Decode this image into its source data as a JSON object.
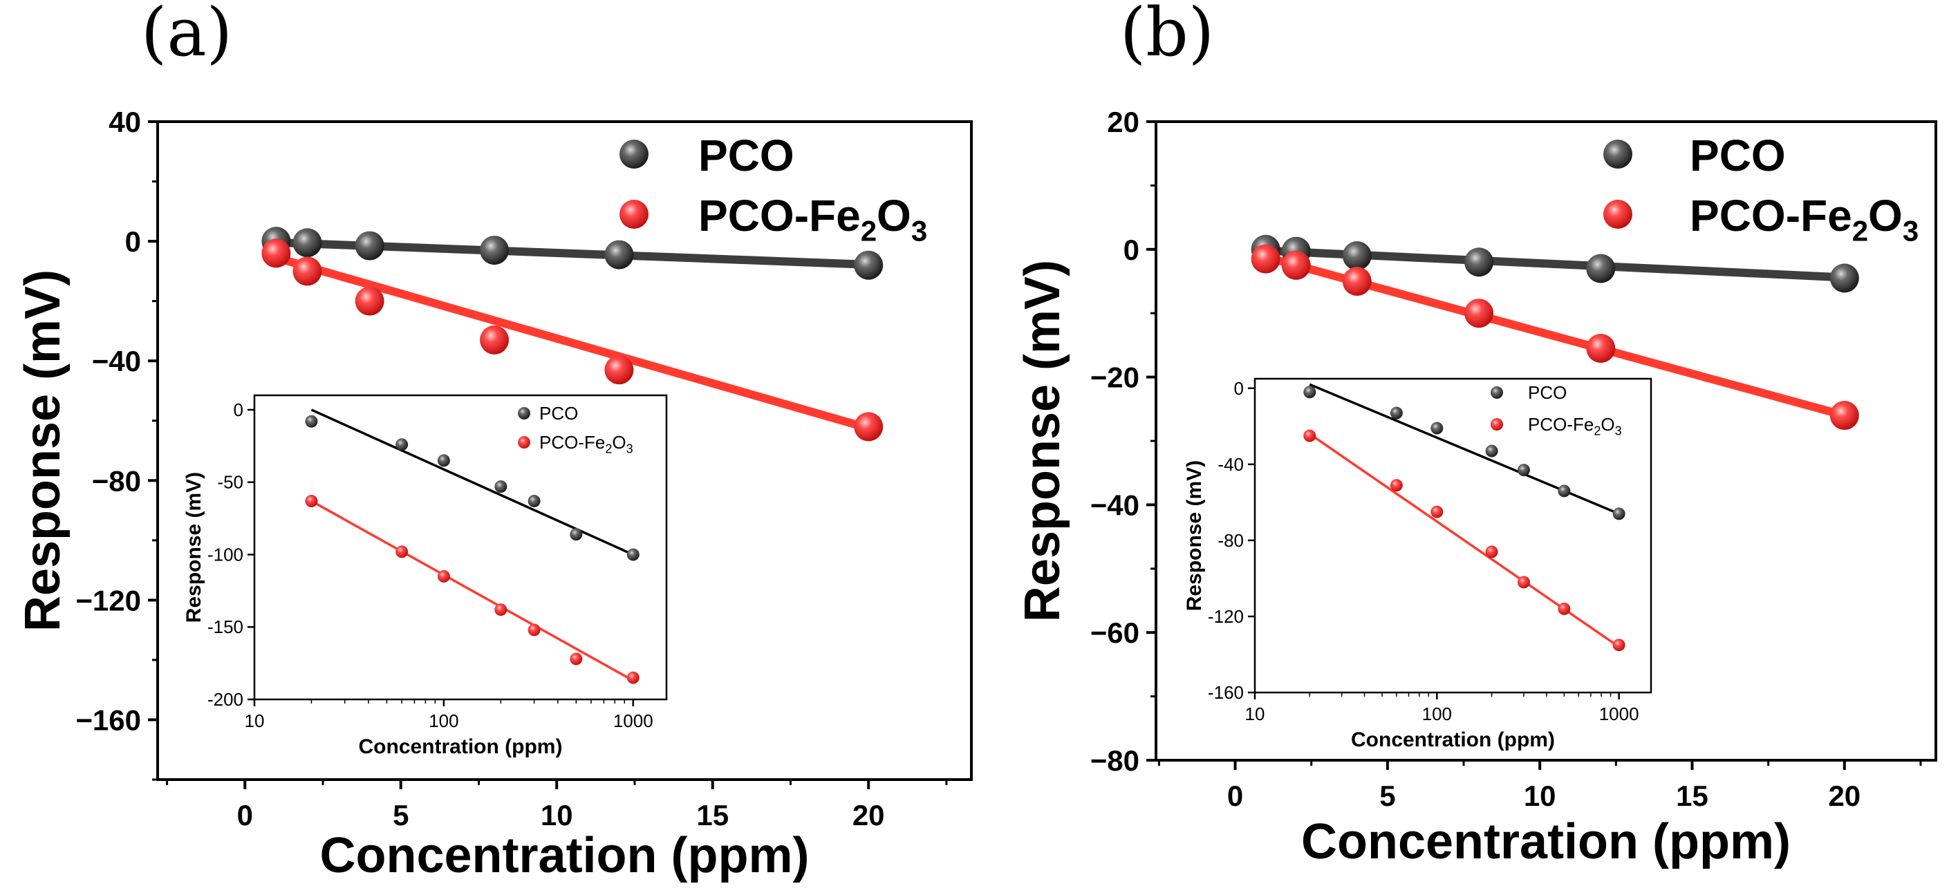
{
  "colors": {
    "pco": "#3a3a3a",
    "pco_fe2o3": "#ef2b2b",
    "pco_line": "#3d3d3d",
    "pco_fe2o3_line": "#ff3b30",
    "axis": "#000000"
  },
  "chart_data": [
    {
      "id": "a",
      "type": "scatter",
      "panel_label": "(a)",
      "xlabel": "Concentration (ppm)",
      "ylabel": "Response (mV)",
      "xlim": [
        -2.8,
        23.3
      ],
      "ylim": [
        -180,
        40
      ],
      "xticks": [
        0,
        5,
        10,
        15,
        20
      ],
      "xtick_labels": [
        "0",
        "5",
        "10",
        "15",
        "20"
      ],
      "yticks": [
        40,
        0,
        -40,
        -80,
        -120,
        -160
      ],
      "ytick_labels": [
        "40",
        "0",
        "−40",
        "−80",
        "−120",
        "−160"
      ],
      "legend_position": "top-right",
      "series": [
        {
          "name": "PCO",
          "legend_main": "PCO",
          "legend_sub": "",
          "legend_tail": "",
          "color_key": "pco",
          "x": [
            1,
            2,
            4,
            8,
            12,
            20
          ],
          "y": [
            0,
            -0.5,
            -1.5,
            -3,
            -4.5,
            -8
          ],
          "fit": [
            [
              1,
              -0.4
            ],
            [
              20,
              -7.8
            ]
          ]
        },
        {
          "name": "PCO-Fe2O3",
          "legend_main": "PCO-Fe",
          "legend_sub": "2",
          "legend_tail": "O",
          "legend_sub2": "3",
          "color_key": "pco_fe2o3",
          "x": [
            1,
            2,
            4,
            8,
            12,
            20
          ],
          "y": [
            -4,
            -10,
            -20,
            -33,
            -43,
            -62
          ],
          "fit": [
            [
              1,
              -5.5
            ],
            [
              20,
              -62.5
            ]
          ]
        }
      ],
      "inset": {
        "type": "scatter",
        "xscale": "log",
        "xlabel": "Concentration (ppm)",
        "ylabel": "Response (mV)",
        "xlim": [
          10,
          1500
        ],
        "ylim": [
          -200,
          10
        ],
        "xticks": [
          10,
          100,
          1000
        ],
        "xtick_labels": [
          "10",
          "100",
          "1000"
        ],
        "yticks": [
          0,
          -50,
          -100,
          -150,
          -200
        ],
        "ytick_labels": [
          "0",
          "-50",
          "-100",
          "-150",
          "-200"
        ],
        "series": [
          {
            "name": "PCO",
            "legend_main": "PCO",
            "legend_sub": "",
            "color_key": "pco",
            "x": [
              20,
              60,
              100,
              200,
              300,
              500,
              1000
            ],
            "y": [
              -8,
              -24,
              -35,
              -53,
              -63,
              -86,
              -100
            ],
            "fit": [
              [
                20,
                0
              ],
              [
                1000,
                -100
              ]
            ]
          },
          {
            "name": "PCO-Fe2O3",
            "legend_main": "PCO-Fe",
            "legend_sub": "2",
            "legend_tail": "O",
            "legend_sub2": "3",
            "color_key": "pco_fe2o3",
            "x": [
              20,
              60,
              100,
              200,
              300,
              500,
              1000
            ],
            "y": [
              -63,
              -98,
              -115,
              -138,
              -152,
              -172,
              -185
            ],
            "fit": [
              [
                20,
                -63
              ],
              [
                1000,
                -187
              ]
            ]
          }
        ]
      }
    },
    {
      "id": "b",
      "type": "scatter",
      "panel_label": "(b)",
      "xlabel": "Concentration (ppm)",
      "ylabel": "Response (mV)",
      "xlim": [
        -2.6,
        23.0
      ],
      "ylim": [
        -80,
        20
      ],
      "xticks": [
        0,
        5,
        10,
        15,
        20
      ],
      "xtick_labels": [
        "0",
        "5",
        "10",
        "15",
        "20"
      ],
      "yticks": [
        20,
        0,
        -20,
        -40,
        -60,
        -80
      ],
      "ytick_labels": [
        "20",
        "0",
        "−20",
        "−40",
        "−60",
        "−80"
      ],
      "legend_position": "top-right",
      "series": [
        {
          "name": "PCO",
          "legend_main": "PCO",
          "legend_sub": "",
          "color_key": "pco",
          "x": [
            1,
            2,
            4,
            8,
            12,
            20
          ],
          "y": [
            0,
            -0.3,
            -1,
            -2,
            -3,
            -4.5
          ],
          "fit": [
            [
              1,
              -0.2
            ],
            [
              20,
              -4.4
            ]
          ]
        },
        {
          "name": "PCO-Fe2O3",
          "legend_main": "PCO-Fe",
          "legend_sub": "2",
          "legend_tail": "O",
          "legend_sub2": "3",
          "color_key": "pco_fe2o3",
          "x": [
            1,
            2,
            4,
            8,
            12,
            20
          ],
          "y": [
            -1.5,
            -2.5,
            -5,
            -10,
            -15.5,
            -26
          ],
          "fit": [
            [
              1,
              -1.2
            ],
            [
              20,
              -26
            ]
          ]
        }
      ],
      "inset": {
        "type": "scatter",
        "xscale": "log",
        "xlabel": "Concentration (ppm)",
        "ylabel": "Response (mV)",
        "xlim": [
          10,
          1500
        ],
        "ylim": [
          -160,
          5
        ],
        "xticks": [
          10,
          100,
          1000
        ],
        "xtick_labels": [
          "10",
          "100",
          "1000"
        ],
        "yticks": [
          0,
          -40,
          -80,
          -120,
          -160
        ],
        "ytick_labels": [
          "0",
          "-40",
          "-80",
          "-120",
          "-160"
        ],
        "series": [
          {
            "name": "PCO",
            "legend_main": "PCO",
            "legend_sub": "",
            "color_key": "pco",
            "x": [
              20,
              60,
              100,
              200,
              300,
              500,
              1000
            ],
            "y": [
              -2,
              -13,
              -21,
              -33,
              -43,
              -54,
              -66
            ],
            "fit": [
              [
                20,
                2
              ],
              [
                1000,
                -66
              ]
            ]
          },
          {
            "name": "PCO-Fe2O3",
            "legend_main": "PCO-Fe",
            "legend_sub": "2",
            "legend_tail": "O",
            "legend_sub2": "3",
            "color_key": "pco_fe2o3",
            "x": [
              20,
              60,
              100,
              200,
              300,
              500,
              1000
            ],
            "y": [
              -25,
              -51,
              -65,
              -86,
              -102,
              -116,
              -135
            ],
            "fit": [
              [
                20,
                -24
              ],
              [
                1000,
                -136
              ]
            ]
          }
        ]
      }
    }
  ]
}
